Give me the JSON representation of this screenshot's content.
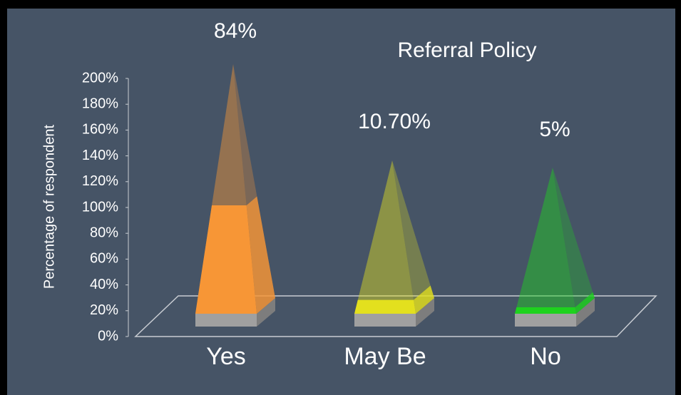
{
  "chart_data": {
    "type": "pyramid",
    "title": "Referral Policy",
    "y_label": "Percentage of respondent",
    "categories": [
      "Yes",
      "May Be",
      "No"
    ],
    "values": [
      84,
      10.7,
      5
    ],
    "value_labels": [
      "84%",
      "10.70%",
      "5%"
    ],
    "colors": [
      "#f79636",
      "#e3e01e",
      "#1ed21e"
    ],
    "ylim": [
      0,
      200
    ],
    "yticks": [
      {
        "value": 0,
        "label": "0%"
      },
      {
        "value": 20,
        "label": "20%"
      },
      {
        "value": 40,
        "label": "40%"
      },
      {
        "value": 60,
        "label": "60%"
      },
      {
        "value": 80,
        "label": "80%"
      },
      {
        "value": 100,
        "label": "100%"
      },
      {
        "value": 120,
        "label": "120%"
      },
      {
        "value": 140,
        "label": "140%"
      },
      {
        "value": 160,
        "label": "160%"
      },
      {
        "value": 180,
        "label": "180%"
      },
      {
        "value": 200,
        "label": "200%"
      }
    ],
    "grid": false
  }
}
